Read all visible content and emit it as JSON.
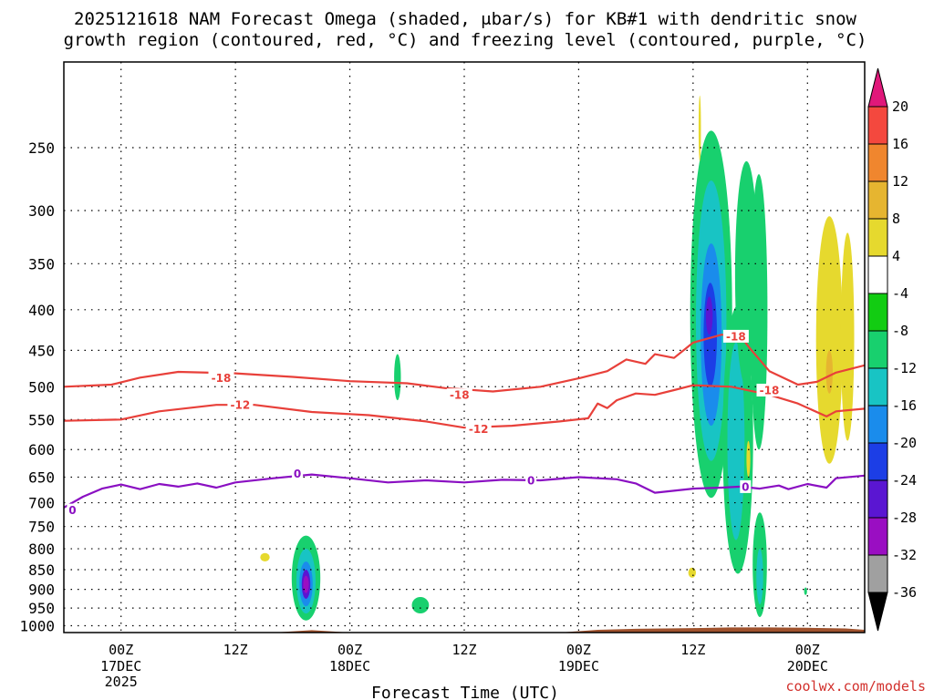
{
  "chart_data": {
    "type": "time-height cross section",
    "title_line1": "2025121618 NAM Forecast Omega (shaded, μbar/s) for KB#1 with dendritic snow",
    "title_line2": "growth region (contoured, red, °C) and freezing level (contoured, purple, °C)",
    "xlabel": "Forecast Time (UTC)",
    "ylabel": "",
    "credit": "coolwx.com/models",
    "y_axis": {
      "scale": "log-pressure",
      "unit": "hPa",
      "range": [
        1020,
        195
      ],
      "ticks": [
        250,
        300,
        350,
        400,
        450,
        500,
        550,
        600,
        650,
        700,
        750,
        800,
        850,
        900,
        950,
        1000
      ],
      "gridlines": true
    },
    "x_axis": {
      "unit": "hours since 2025-12-16 18Z",
      "range": [
        0,
        84
      ],
      "ticks": [
        {
          "h": 6,
          "label": "00Z",
          "sub1": "17DEC",
          "sub2": "2025"
        },
        {
          "h": 18,
          "label": "12Z",
          "sub1": "",
          "sub2": ""
        },
        {
          "h": 30,
          "label": "00Z",
          "sub1": "18DEC",
          "sub2": ""
        },
        {
          "h": 42,
          "label": "12Z",
          "sub1": "",
          "sub2": ""
        },
        {
          "h": 54,
          "label": "00Z",
          "sub1": "19DEC",
          "sub2": ""
        },
        {
          "h": 66,
          "label": "12Z",
          "sub1": "",
          "sub2": ""
        },
        {
          "h": 78,
          "label": "00Z",
          "sub1": "20DEC",
          "sub2": ""
        }
      ]
    },
    "colorbar": {
      "unit": "μbar/s",
      "bins": [
        {
          "lo": 16,
          "hi": 20,
          "color": "#f4483e"
        },
        {
          "lo": 12,
          "hi": 16,
          "color": "#f0862e"
        },
        {
          "lo": 8,
          "hi": 12,
          "color": "#e6b530"
        },
        {
          "lo": 4,
          "hi": 8,
          "color": "#e6d92e"
        },
        {
          "lo": -4,
          "hi": 4,
          "color": "#ffffff"
        },
        {
          "lo": -8,
          "hi": -4,
          "color": "#12cc12"
        },
        {
          "lo": -12,
          "hi": -8,
          "color": "#18d06e"
        },
        {
          "lo": -16,
          "hi": -12,
          "color": "#18c4c4"
        },
        {
          "lo": -20,
          "hi": -16,
          "color": "#1a8cec"
        },
        {
          "lo": -24,
          "hi": -20,
          "color": "#1c3ee6"
        },
        {
          "lo": -28,
          "hi": -24,
          "color": "#5a16d2"
        },
        {
          "lo": -32,
          "hi": -28,
          "color": "#9a0ec2"
        },
        {
          "lo": -36,
          "hi": -32,
          "color": "#a0a0a0"
        }
      ],
      "labels": [
        20,
        16,
        12,
        8,
        4,
        -4,
        -8,
        -12,
        -16,
        -20,
        -24,
        -28,
        -32,
        -36
      ],
      "top_arrow_color": "#e0187a",
      "bottom_arrow_color": "#000000"
    },
    "contours": [
      {
        "name": "-18C isotherm",
        "color": "#e8403a",
        "label": "-18",
        "label_at": [
          {
            "h": 16.5,
            "p": 487
          },
          {
            "h": 41.5,
            "p": 512
          },
          {
            "h": 70.5,
            "p": 432
          },
          {
            "h": 74.0,
            "p": 505
          }
        ],
        "points": [
          [
            0,
            500
          ],
          [
            5,
            497
          ],
          [
            8,
            487
          ],
          [
            12,
            479
          ],
          [
            18,
            481
          ],
          [
            24,
            486
          ],
          [
            30,
            492
          ],
          [
            36,
            495
          ],
          [
            40,
            502
          ],
          [
            45,
            507
          ],
          [
            50,
            500
          ],
          [
            54,
            488
          ],
          [
            57,
            478
          ],
          [
            59,
            462
          ],
          [
            61,
            468
          ],
          [
            62,
            455
          ],
          [
            64,
            460
          ],
          [
            66,
            440
          ],
          [
            69,
            430
          ],
          [
            71,
            432
          ],
          [
            72,
            448
          ],
          [
            74,
            478
          ],
          [
            77,
            497
          ],
          [
            79,
            493
          ],
          [
            81,
            480
          ],
          [
            84,
            470
          ]
        ]
      },
      {
        "name": "-12C isotherm",
        "color": "#e8403a",
        "label": "-12",
        "label_at": [
          {
            "h": 18.5,
            "p": 527
          },
          {
            "h": 43.5,
            "p": 565
          }
        ],
        "points": [
          [
            0,
            552
          ],
          [
            6,
            550
          ],
          [
            10,
            537
          ],
          [
            16,
            527
          ],
          [
            20,
            527
          ],
          [
            26,
            538
          ],
          [
            32,
            543
          ],
          [
            38,
            553
          ],
          [
            42,
            563
          ],
          [
            47,
            560
          ],
          [
            52,
            553
          ],
          [
            55,
            548
          ],
          [
            56,
            525
          ],
          [
            57,
            532
          ],
          [
            58,
            520
          ],
          [
            60,
            510
          ],
          [
            62,
            512
          ],
          [
            64,
            505
          ],
          [
            66,
            498
          ],
          [
            70,
            500
          ],
          [
            74,
            512
          ],
          [
            77,
            525
          ],
          [
            80,
            545
          ],
          [
            81,
            537
          ],
          [
            84,
            533
          ]
        ]
      },
      {
        "name": "0C freezing level",
        "color": "#8a0fc2",
        "label": "0",
        "label_at": [
          {
            "h": 0.9,
            "p": 715
          },
          {
            "h": 24.5,
            "p": 643
          },
          {
            "h": 49.0,
            "p": 656
          },
          {
            "h": 71.5,
            "p": 668
          }
        ],
        "points": [
          [
            0,
            710
          ],
          [
            2,
            688
          ],
          [
            4,
            672
          ],
          [
            6,
            664
          ],
          [
            8,
            673
          ],
          [
            10,
            663
          ],
          [
            12,
            668
          ],
          [
            14,
            662
          ],
          [
            16,
            670
          ],
          [
            18,
            660
          ],
          [
            22,
            652
          ],
          [
            26,
            645
          ],
          [
            30,
            652
          ],
          [
            34,
            660
          ],
          [
            38,
            656
          ],
          [
            42,
            660
          ],
          [
            46,
            655
          ],
          [
            50,
            656
          ],
          [
            54,
            650
          ],
          [
            58,
            654
          ],
          [
            60,
            662
          ],
          [
            62,
            680
          ],
          [
            66,
            672
          ],
          [
            69,
            670
          ],
          [
            71,
            668
          ],
          [
            73,
            672
          ],
          [
            75,
            666
          ],
          [
            76,
            673
          ],
          [
            78,
            663
          ],
          [
            80,
            670
          ],
          [
            81,
            652
          ],
          [
            84,
            647
          ]
        ]
      }
    ],
    "shaded_regions": [
      {
        "level": -8,
        "h_center": 25.4,
        "p_top": 770,
        "p_bottom": 985,
        "h_half_width": 1.5
      },
      {
        "level": -12,
        "h_center": 25.4,
        "p_top": 800,
        "p_bottom": 965,
        "h_half_width": 1.0
      },
      {
        "level": -16,
        "h_center": 25.4,
        "p_top": 830,
        "p_bottom": 945,
        "h_half_width": 0.7
      },
      {
        "level": -24,
        "h_center": 25.4,
        "p_top": 850,
        "p_bottom": 925,
        "h_half_width": 0.45
      },
      {
        "level": -28,
        "h_center": 25.4,
        "p_top": 865,
        "p_bottom": 910,
        "h_half_width": 0.3
      },
      {
        "level": -8,
        "h_center": 35.0,
        "p_top": 455,
        "p_bottom": 520,
        "h_half_width": 0.35
      },
      {
        "level": -8,
        "h_center": 37.4,
        "p_top": 920,
        "p_bottom": 965,
        "h_half_width": 0.9
      },
      {
        "level": 4,
        "h_center": 21.1,
        "p_top": 810,
        "p_bottom": 830,
        "h_half_width": 0.5
      },
      {
        "level": 4,
        "h_center": 65.9,
        "p_top": 845,
        "p_bottom": 870,
        "h_half_width": 0.4
      },
      {
        "level": -8,
        "h_center": 77.8,
        "p_top": 895,
        "p_bottom": 915,
        "h_half_width": 0.15
      },
      {
        "level": -8,
        "h_center": 67.9,
        "p_top": 238,
        "p_bottom": 690,
        "h_half_width": 2.2
      },
      {
        "level": -12,
        "h_center": 67.9,
        "p_top": 275,
        "p_bottom": 620,
        "h_half_width": 1.6
      },
      {
        "level": -16,
        "h_center": 67.9,
        "p_top": 330,
        "p_bottom": 560,
        "h_half_width": 1.1
      },
      {
        "level": -20,
        "h_center": 67.8,
        "p_top": 370,
        "p_bottom": 500,
        "h_half_width": 0.7
      },
      {
        "level": -24,
        "h_center": 67.7,
        "p_top": 385,
        "p_bottom": 430,
        "h_half_width": 0.35
      },
      {
        "level": -8,
        "h_center": 70.7,
        "p_top": 395,
        "p_bottom": 860,
        "h_half_width": 1.6
      },
      {
        "level": -12,
        "h_center": 70.5,
        "p_top": 440,
        "p_bottom": 780,
        "h_half_width": 0.9
      },
      {
        "level": -8,
        "h_center": 71.6,
        "p_top": 260,
        "p_bottom": 500,
        "h_half_width": 1.2
      },
      {
        "level": -8,
        "h_center": 72.9,
        "p_top": 270,
        "p_bottom": 600,
        "h_half_width": 0.9
      },
      {
        "level": -8,
        "h_center": 73.0,
        "p_top": 720,
        "p_bottom": 975,
        "h_half_width": 0.75
      },
      {
        "level": -12,
        "h_center": 73.0,
        "p_top": 800,
        "p_bottom": 940,
        "h_half_width": 0.35
      },
      {
        "level": 4,
        "h_center": 66.7,
        "p_top": 215,
        "p_bottom": 260,
        "h_half_width": 0.12
      },
      {
        "level": 4,
        "h_center": 71.8,
        "p_top": 585,
        "p_bottom": 650,
        "h_half_width": 0.2
      },
      {
        "level": 4,
        "h_center": 80.3,
        "p_top": 305,
        "p_bottom": 625,
        "h_half_width": 1.4
      },
      {
        "level": 4,
        "h_center": 82.2,
        "p_top": 320,
        "p_bottom": 585,
        "h_half_width": 0.7
      },
      {
        "level": 8,
        "h_center": 80.3,
        "p_top": 450,
        "p_bottom": 510,
        "h_half_width": 0.35
      }
    ],
    "terrain": {
      "color": "#a0522d",
      "surface": [
        [
          0,
          1020
        ],
        [
          22,
          1020
        ],
        [
          26,
          1013
        ],
        [
          30,
          1020
        ],
        [
          52,
          1020
        ],
        [
          56,
          1012
        ],
        [
          60,
          1009
        ],
        [
          66,
          1007
        ],
        [
          70,
          1005
        ],
        [
          74,
          1005
        ],
        [
          78,
          1006
        ],
        [
          82,
          1008
        ],
        [
          84,
          1012
        ]
      ]
    }
  }
}
